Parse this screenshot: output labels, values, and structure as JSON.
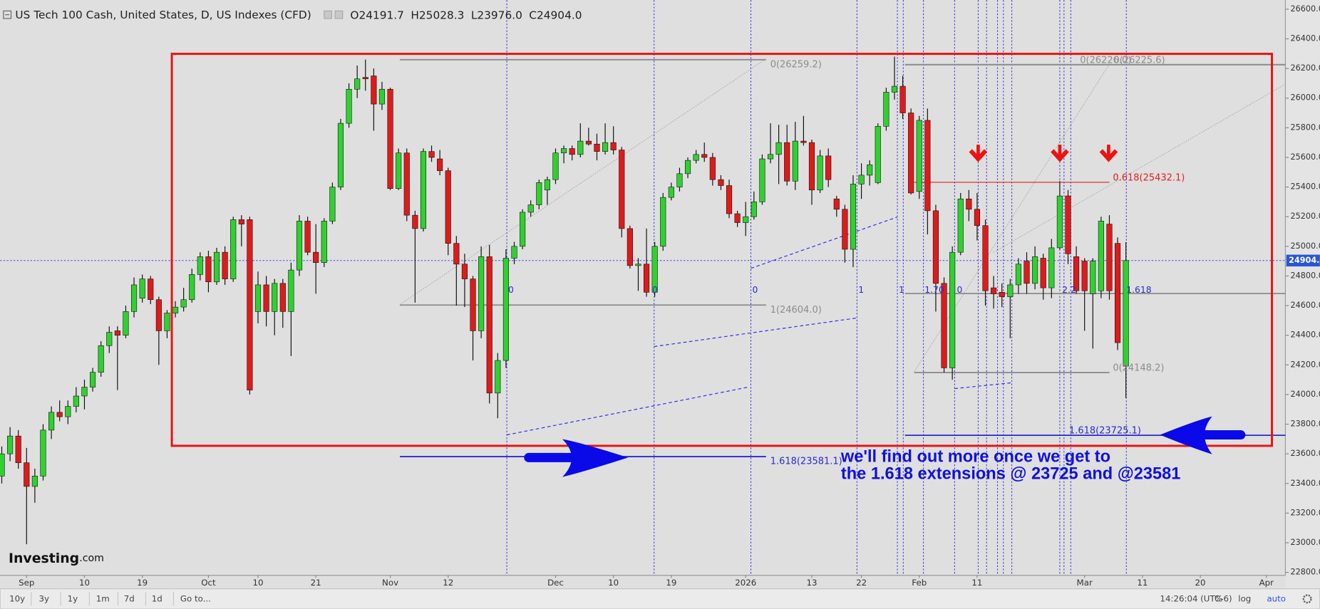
{
  "chart_data": {
    "type": "candlestick",
    "header": {
      "title": "US Tech 100 Cash, United States, D, US Indexes (CFD)",
      "ohlc": [
        {
          "key": "O",
          "value": "24191.7"
        },
        {
          "key": "H",
          "value": "25028.3"
        },
        {
          "key": "L",
          "value": "23976.0"
        },
        {
          "key": "C",
          "value": "24904.0"
        }
      ]
    },
    "categories": [
      null,
      null,
      null,
      "Sep",
      null,
      null,
      null,
      null,
      null,
      null,
      "10",
      null,
      null,
      null,
      null,
      null,
      null,
      "19",
      null,
      null,
      null,
      null,
      null,
      null,
      null,
      "Oct",
      null,
      null,
      null,
      null,
      null,
      "10",
      null,
      null,
      null,
      null,
      null,
      null,
      "21",
      null,
      null,
      null,
      null,
      null,
      null,
      null,
      null,
      "Nov",
      null,
      null,
      null,
      null,
      null,
      null,
      "12",
      null,
      null,
      null,
      null,
      null,
      null,
      null,
      null,
      null,
      null,
      null,
      null,
      "Dec",
      null,
      null,
      null,
      null,
      null,
      null,
      "10",
      null,
      null,
      null,
      null,
      null,
      null,
      "19",
      null,
      null,
      null,
      null,
      null,
      null,
      null,
      null,
      "2026",
      null,
      null,
      null,
      null,
      null,
      null,
      null,
      "13",
      null,
      null,
      null,
      null,
      null,
      "22",
      null,
      null,
      null,
      null,
      null,
      null,
      "Feb",
      null,
      null,
      null,
      null,
      null,
      null,
      "11",
      null,
      null,
      null,
      null,
      null,
      null,
      null,
      null,
      null,
      null,
      null,
      null,
      "Mar",
      null,
      null,
      null,
      null,
      null,
      null,
      "11",
      null,
      null,
      null,
      null,
      null,
      null,
      "20",
      null,
      null,
      null,
      null,
      null,
      null,
      null,
      "Apr",
      null,
      null
    ],
    "open": [
      23450,
      23600,
      23720,
      23540,
      23380,
      23450,
      23760,
      23880,
      23850,
      23920,
      23990,
      24050,
      24150,
      24330,
      24430,
      24400,
      24560,
      24650,
      24780,
      24640,
      24430,
      24550,
      24590,
      24640,
      24810,
      24930,
      24760,
      24960,
      24780,
      25180,
      25180,
      24560,
      24740,
      24560,
      24750,
      24560,
      24840,
      25170,
      24960,
      24890,
      25170,
      25400,
      25830,
      26060,
      26140,
      26150,
      25960,
      26060,
      25390,
      25630,
      25210,
      25120,
      25640,
      25590,
      25510,
      25020,
      24880,
      24780,
      24430,
      24930,
      24010,
      24230,
      24920,
      25000,
      25230,
      25280,
      25380,
      25450,
      25630,
      25660,
      25620,
      25710,
      25690,
      25640,
      25700,
      25650,
      25120,
      24870,
      24880,
      24690,
      25000,
      25330,
      25400,
      25490,
      25580,
      25620,
      25600,
      25450,
      25410,
      25220,
      25160,
      25200,
      25300,
      25590,
      25620,
      25700,
      25440,
      25710,
      25700,
      25380,
      25610,
      25320,
      25250,
      24980,
      25420,
      25480,
      25430,
      25810,
      26040,
      26080,
      25900,
      25370,
      25850,
      25240,
      24750,
      24180,
      24960,
      25320,
      25250,
      25140,
      24720,
      24690,
      24660,
      24740,
      24900,
      24750,
      24920,
      24720,
      24990,
      25340,
      24930,
      24900,
      24680,
      24700,
      25150,
      25020,
      24191.7,
      null,
      null,
      null,
      null,
      null,
      null,
      null,
      null,
      null,
      null,
      null,
      null,
      null,
      null,
      null,
      null,
      null,
      null,
      null
    ],
    "high": [
      23650,
      23780,
      23760,
      23640,
      23500,
      23800,
      23920,
      23960,
      23960,
      24050,
      24100,
      24180,
      24360,
      24460,
      24460,
      24600,
      24790,
      24810,
      24800,
      24660,
      24570,
      24630,
      24720,
      24850,
      24960,
      24970,
      24990,
      25000,
      25200,
      25210,
      25200,
      24830,
      24800,
      24780,
      24780,
      24890,
      25210,
      25200,
      25150,
      25190,
      25430,
      25860,
      26100,
      26220,
      26260,
      26200,
      26110,
      26070,
      25660,
      25660,
      25240,
      25660,
      25680,
      25650,
      25530,
      25070,
      24950,
      24800,
      25000,
      25010,
      24280,
      24980,
      25030,
      25250,
      25310,
      25450,
      25470,
      25660,
      25680,
      25680,
      25830,
      25800,
      25760,
      25830,
      25810,
      25670,
      25140,
      24920,
      25120,
      25030,
      25360,
      25430,
      25530,
      25600,
      25650,
      25700,
      25630,
      25480,
      25450,
      25240,
      25300,
      25370,
      25620,
      25830,
      25820,
      25820,
      25840,
      25880,
      25720,
      25650,
      25660,
      25340,
      25280,
      25480,
      25560,
      25580,
      25830,
      26070,
      26280,
      26150,
      25930,
      25880,
      25930,
      25280,
      24790,
      25000,
      25360,
      25380,
      25360,
      25180,
      24800,
      24750,
      24780,
      24920,
      24960,
      25000,
      24950,
      25050,
      25440,
      25380,
      25000,
      24920,
      24920,
      25200,
      25210,
      25060,
      25028.3,
      null,
      null,
      null,
      null,
      null,
      null,
      null,
      null,
      null,
      null,
      null,
      null,
      null,
      null,
      null,
      null,
      null,
      null,
      null
    ],
    "low": [
      23400,
      23550,
      23500,
      22990,
      23270,
      23420,
      23700,
      23820,
      23800,
      23880,
      23900,
      24020,
      24120,
      24280,
      24030,
      24380,
      24520,
      24620,
      24610,
      24200,
      24380,
      24520,
      24560,
      24620,
      24770,
      24690,
      24740,
      24740,
      24760,
      25000,
      24000,
      24480,
      24460,
      24400,
      24450,
      24260,
      24800,
      24940,
      24680,
      24860,
      25150,
      25380,
      25800,
      26000,
      26050,
      25780,
      25920,
      25380,
      25380,
      25170,
      24620,
      25100,
      25570,
      25480,
      24940,
      24600,
      24590,
      24230,
      24380,
      23940,
      23840,
      24180,
      24880,
      24980,
      25200,
      25250,
      25280,
      25420,
      25560,
      25580,
      25600,
      25680,
      25580,
      25620,
      25620,
      25060,
      24850,
      24700,
      24660,
      24660,
      24970,
      25310,
      25370,
      25460,
      25560,
      25570,
      25410,
      25380,
      25190,
      25130,
      25070,
      25180,
      25280,
      25560,
      25420,
      25410,
      25380,
      25680,
      25280,
      25360,
      25400,
      25200,
      24890,
      24860,
      25320,
      25410,
      25420,
      25780,
      25990,
      25860,
      25350,
      25320,
      25080,
      24560,
      24150,
      24100,
      24940,
      25170,
      25040,
      24600,
      24580,
      24590,
      24380,
      24680,
      24680,
      24710,
      24640,
      24650,
      24980,
      24880,
      24680,
      24430,
      24310,
      24650,
      24640,
      24300,
      23976.0,
      null,
      null,
      null,
      null,
      null,
      null,
      null,
      null,
      null,
      null,
      null,
      null,
      null,
      null,
      null,
      null,
      null,
      null,
      null
    ],
    "close": [
      23600,
      23720,
      23540,
      23380,
      23450,
      23760,
      23880,
      23850,
      23920,
      23990,
      24050,
      24150,
      24330,
      24420,
      24400,
      24560,
      24740,
      24780,
      24640,
      24430,
      24550,
      24590,
      24640,
      24810,
      24930,
      24760,
      24960,
      24780,
      25180,
      25150,
      24030,
      24740,
      24560,
      24750,
      24560,
      24840,
      25170,
      24960,
      24890,
      25170,
      25400,
      25830,
      26060,
      26130,
      26130,
      25960,
      26060,
      25390,
      25630,
      25210,
      25120,
      25640,
      25600,
      25510,
      25020,
      24880,
      24780,
      24430,
      24930,
      24010,
      24230,
      24920,
      25000,
      25230,
      25280,
      25430,
      25450,
      25630,
      25660,
      25620,
      25710,
      25690,
      25640,
      25700,
      25650,
      25120,
      24870,
      24880,
      24690,
      25000,
      25330,
      25400,
      25490,
      25580,
      25620,
      25600,
      25450,
      25410,
      25220,
      25160,
      25200,
      25300,
      25590,
      25620,
      25700,
      25440,
      25710,
      25700,
      25380,
      25610,
      25450,
      25250,
      24980,
      25420,
      25480,
      25550,
      25810,
      26040,
      26080,
      25900,
      25360,
      25850,
      25240,
      24750,
      24180,
      24960,
      25320,
      25250,
      25140,
      24700,
      24680,
      24660,
      24740,
      24880,
      24750,
      24930,
      24720,
      24990,
      25340,
      24950,
      24700,
      24700,
      24900,
      25170,
      24700,
      24350,
      24904.0,
      null,
      null,
      null,
      null,
      null,
      null,
      null,
      null,
      null,
      null,
      null,
      null,
      null,
      null,
      null,
      null,
      null,
      null,
      null
    ],
    "up_color": "#2fd12f",
    "down_color": "#e01a1a",
    "last_price_label": "24904.0",
    "ylim": [
      22780,
      26662
    ],
    "yticks": [
      {
        "value": 22800,
        "label": "22800.0"
      },
      {
        "value": 23000,
        "label": "23000.0"
      },
      {
        "value": 23200,
        "label": "23200.0"
      },
      {
        "value": 23400,
        "label": "23400.0"
      },
      {
        "value": 23600,
        "label": "23600.0"
      },
      {
        "value": 23800,
        "label": "23800.0"
      },
      {
        "value": 24000,
        "label": "24000.0"
      },
      {
        "value": 24200,
        "label": "24200.0"
      },
      {
        "value": 24400,
        "label": "24400.0"
      },
      {
        "value": 24600,
        "label": "24600.0"
      },
      {
        "value": 24800,
        "label": "24800.0"
      },
      {
        "value": 25000,
        "label": "25000.0"
      },
      {
        "value": 25200,
        "label": "25200.0"
      },
      {
        "value": 25400,
        "label": "25400.0"
      },
      {
        "value": 25600,
        "label": "25600.0"
      },
      {
        "value": 25800,
        "label": "25800.0"
      },
      {
        "value": 26000,
        "label": "26000.0"
      },
      {
        "value": 26200,
        "label": "26200.0"
      },
      {
        "value": 26400,
        "label": "26400.0"
      },
      {
        "value": 26600,
        "label": "26600.0"
      }
    ],
    "fib_levels": [
      {
        "label": "0(26259.2)",
        "value": 26259.2,
        "color": "#8c8c8c"
      },
      {
        "label": "1(24604.0)",
        "value": 24604.0,
        "color": "#8c8c8c"
      },
      {
        "label": "1.618(23581.1)",
        "value": 23581.1,
        "color": "#2a2ad0"
      },
      {
        "label": "0(26226.0)",
        "value": 26226.0,
        "color": "#8c8c8c"
      },
      {
        "label": "0(26225.6)",
        "value": 26225.6,
        "color": "#8c8c8c"
      },
      {
        "label": "0.618(25432.1)",
        "value": 25432.1,
        "color": "#e02020"
      },
      {
        "label": "0(24148.2)",
        "value": 24148.2,
        "color": "#8c8c8c"
      },
      {
        "label": "1.618(23725.1)",
        "value": 23725.1,
        "color": "#2a2ad0"
      }
    ],
    "fib_markers": [
      "0",
      "0",
      "0",
      "1",
      "1",
      "1.70",
      "0",
      "2.2",
      "1.618"
    ],
    "annotation": [
      "we'll find out more once we get to",
      "the 1.618 extensions @ 23725 and @23581"
    ],
    "logo": [
      "Investing",
      ".com"
    ],
    "toolbar": {
      "ranges": [
        "10y",
        "3y",
        "1y",
        "1m",
        "7d",
        "1d"
      ],
      "goto": "Go to...",
      "time": "14:26:04 (UTC-6)",
      "options": [
        "%",
        "log",
        "auto"
      ]
    }
  }
}
